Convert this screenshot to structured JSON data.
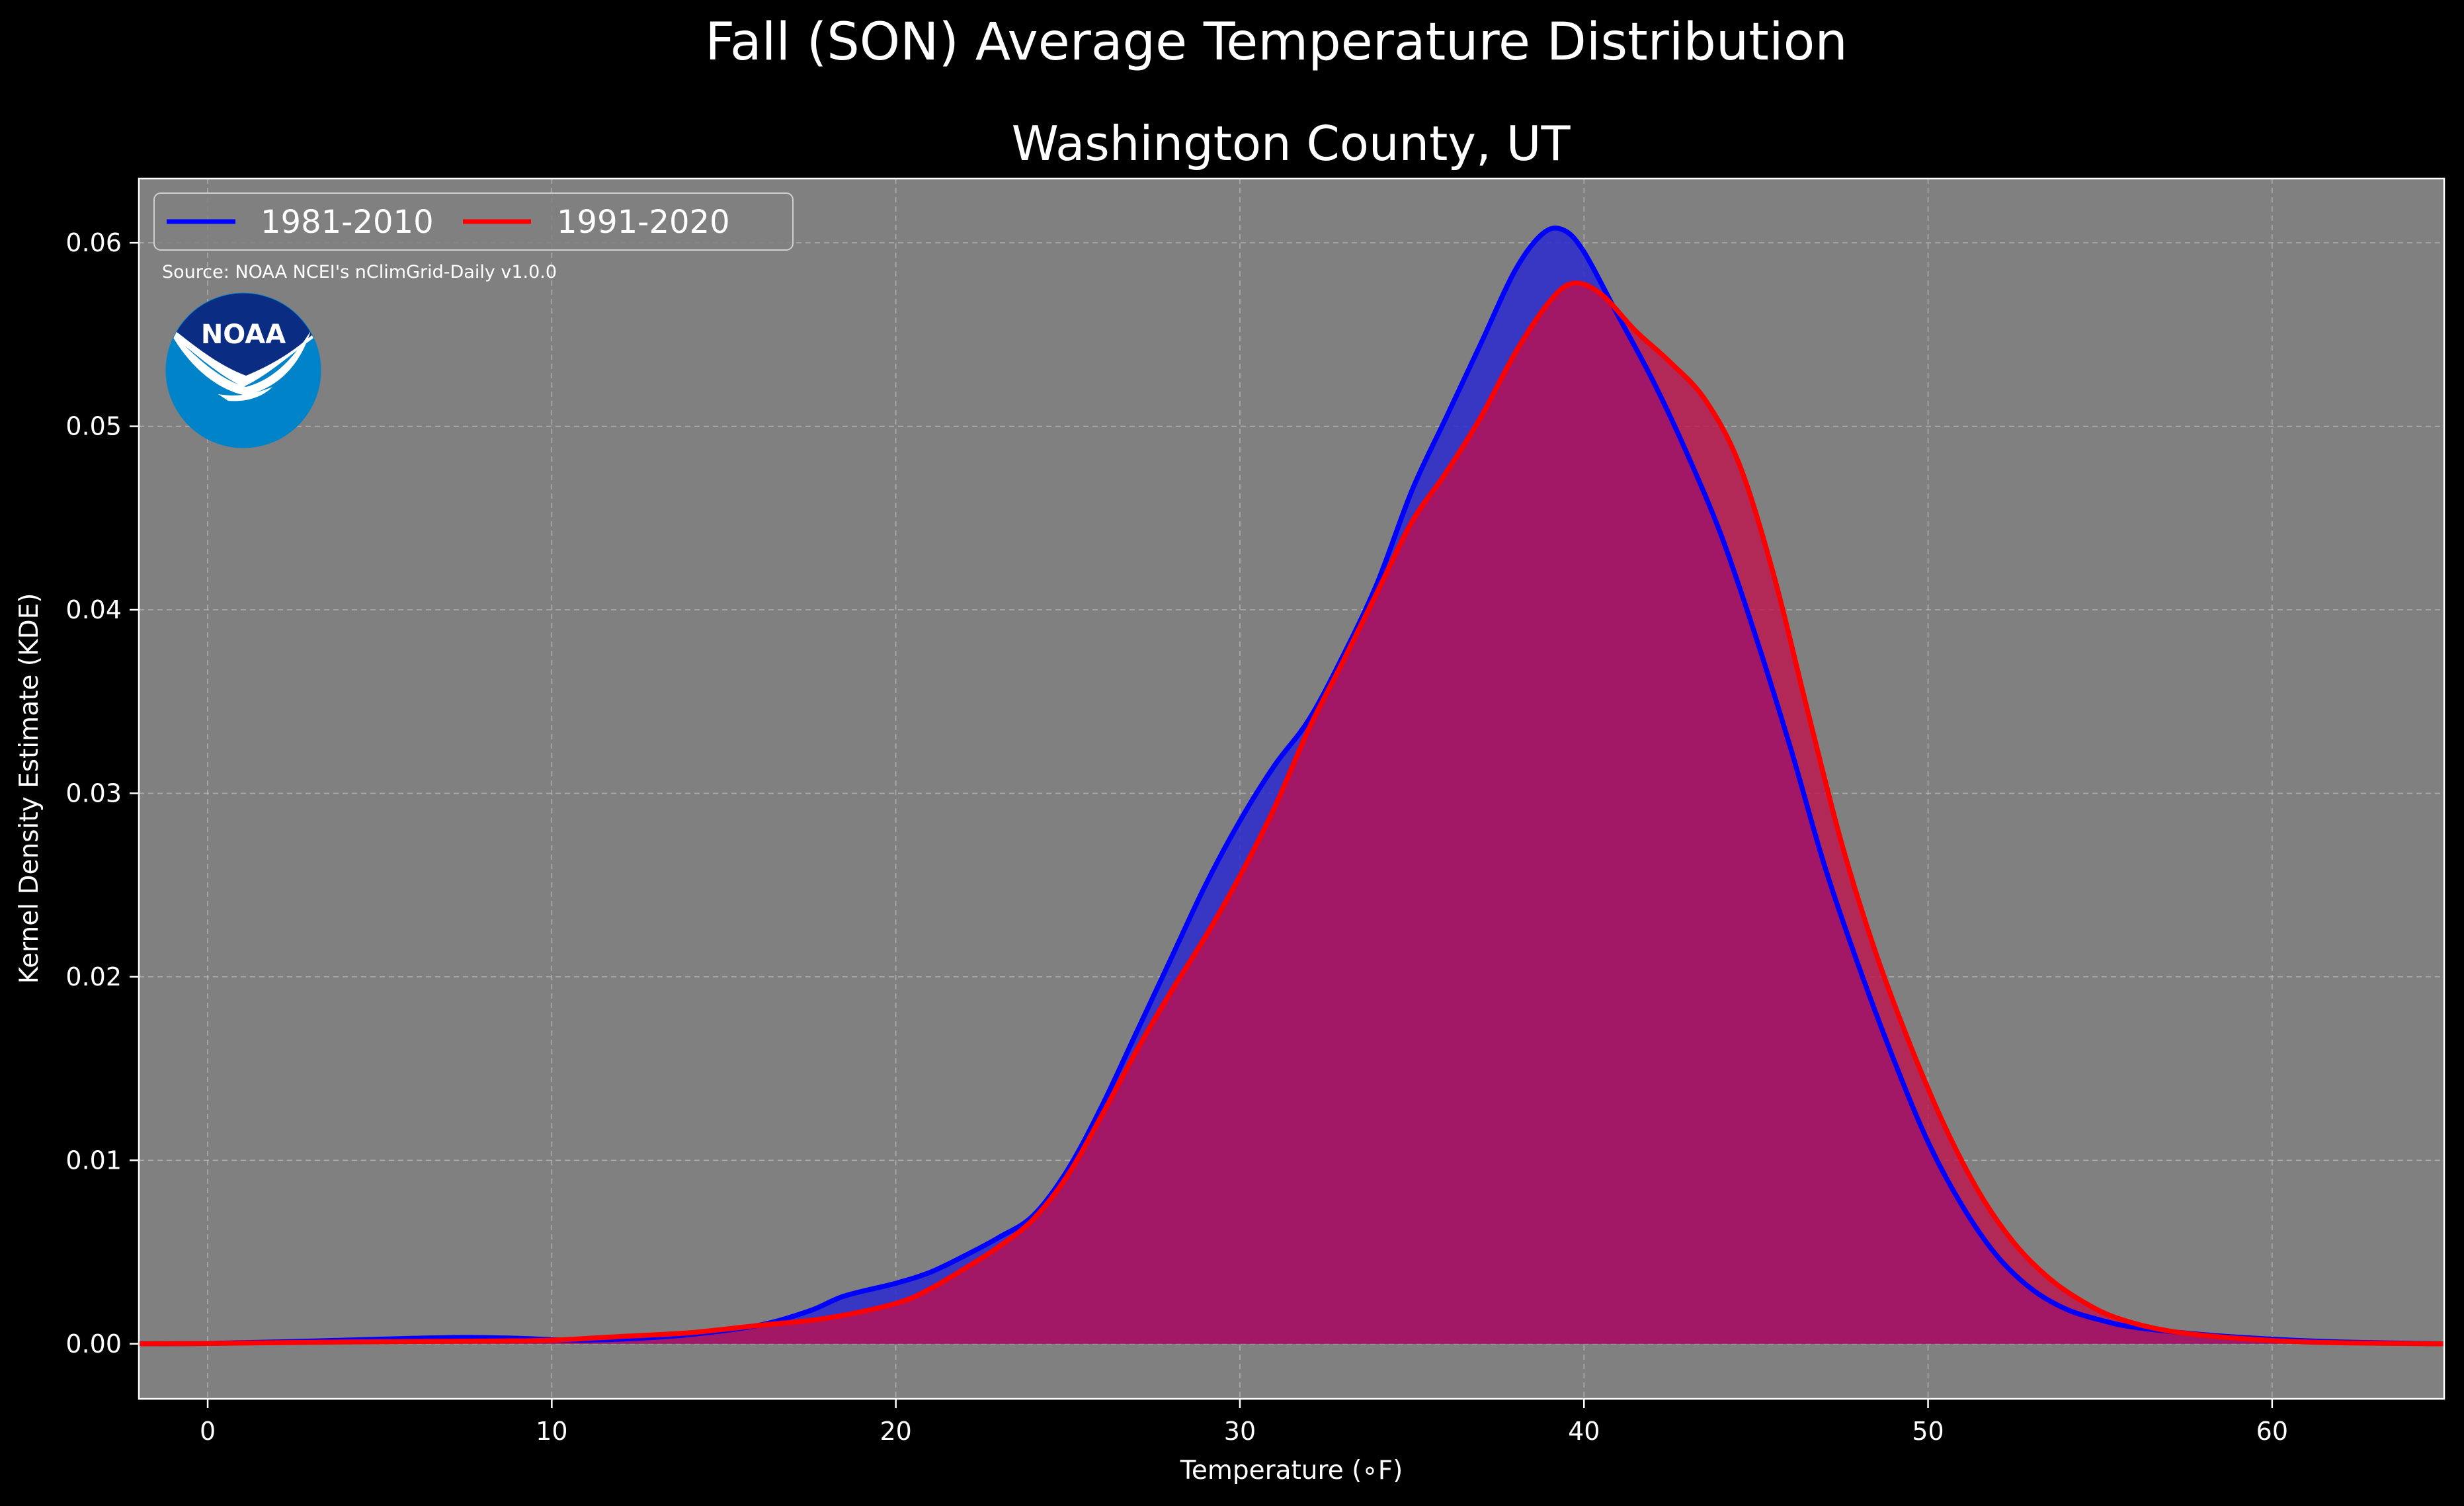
{
  "figure": {
    "suptitle": "Fall (SON) Average Temperature Distribution",
    "source_note": "Source: NOAA NCEI's nClimGrid-Daily v1.0.0",
    "logo_text": "NOAA"
  },
  "chart_data": {
    "type": "area",
    "title": "Washington County, UT",
    "xlabel": "Temperature (∘F)",
    "ylabel": "Kernel Density Estimate (KDE)",
    "xlim": [
      -2,
      65
    ],
    "ylim": [
      -0.003,
      0.0635
    ],
    "x_ticks": [
      0,
      10,
      20,
      30,
      40,
      50,
      60
    ],
    "y_ticks": [
      0.0,
      0.01,
      0.02,
      0.03,
      0.04,
      0.05,
      0.06
    ],
    "y_tick_labels": [
      "0.00",
      "0.01",
      "0.02",
      "0.03",
      "0.04",
      "0.05",
      "0.06"
    ],
    "grid": true,
    "legend_position": "top-left",
    "background_color": "#808080",
    "series": [
      {
        "name": "1981-2010",
        "line_color": "#0000ff",
        "fill_color": "#2a2ad0",
        "x": [
          -2,
          0,
          2,
          4,
          6,
          7.5,
          9,
          10.5,
          12,
          14,
          16,
          17.5,
          18.5,
          20,
          21,
          22,
          23,
          24,
          25,
          26,
          27,
          28,
          29,
          30,
          31,
          32,
          33,
          34,
          35,
          36,
          37,
          38,
          38.8,
          39.4,
          40,
          41,
          42,
          43,
          44,
          45,
          46,
          47,
          48,
          49,
          50,
          51,
          52,
          53,
          54,
          55,
          56,
          58,
          60,
          62,
          65
        ],
        "y": [
          0,
          2e-05,
          0.0001,
          0.0002,
          0.0003,
          0.00035,
          0.0003,
          0.0002,
          0.00025,
          0.0005,
          0.001,
          0.0018,
          0.0026,
          0.0033,
          0.0039,
          0.0048,
          0.0058,
          0.007,
          0.0095,
          0.013,
          0.017,
          0.021,
          0.025,
          0.0285,
          0.0315,
          0.034,
          0.0375,
          0.0415,
          0.0465,
          0.0505,
          0.0545,
          0.0585,
          0.0605,
          0.0607,
          0.0595,
          0.056,
          0.0525,
          0.0485,
          0.044,
          0.0385,
          0.0325,
          0.026,
          0.0205,
          0.0155,
          0.011,
          0.0075,
          0.0048,
          0.003,
          0.0019,
          0.0013,
          0.0009,
          0.0005,
          0.00025,
          0.0001,
          0
        ]
      },
      {
        "name": "1991-2020",
        "line_color": "#ff0000",
        "fill_color": "#c0104c",
        "x": [
          -2,
          0,
          4,
          8,
          10,
          12,
          14,
          16,
          18,
          20,
          21,
          22,
          23,
          24,
          25,
          26,
          27,
          28,
          29,
          30,
          31,
          32,
          33,
          34,
          35,
          36,
          37,
          38,
          39,
          39.7,
          40.5,
          41.5,
          42.5,
          43.5,
          44.5,
          45.5,
          46.5,
          47.5,
          48.5,
          49.5,
          50.5,
          51.5,
          52.5,
          53.5,
          54.5,
          55.5,
          57,
          59,
          61,
          63,
          65
        ],
        "y": [
          0,
          2e-05,
          0.0001,
          0.00015,
          0.0002,
          0.0004,
          0.0006,
          0.001,
          0.0014,
          0.0022,
          0.003,
          0.0041,
          0.0053,
          0.0068,
          0.0092,
          0.0125,
          0.016,
          0.0192,
          0.0222,
          0.0255,
          0.0292,
          0.0335,
          0.0372,
          0.041,
          0.0448,
          0.0475,
          0.0505,
          0.054,
          0.0568,
          0.0578,
          0.0572,
          0.0552,
          0.0535,
          0.0515,
          0.048,
          0.042,
          0.0345,
          0.0272,
          0.0212,
          0.0162,
          0.0118,
          0.0082,
          0.0055,
          0.0036,
          0.0023,
          0.0014,
          0.0007,
          0.0003,
          0.0001,
          3e-05,
          0
        ]
      }
    ]
  }
}
